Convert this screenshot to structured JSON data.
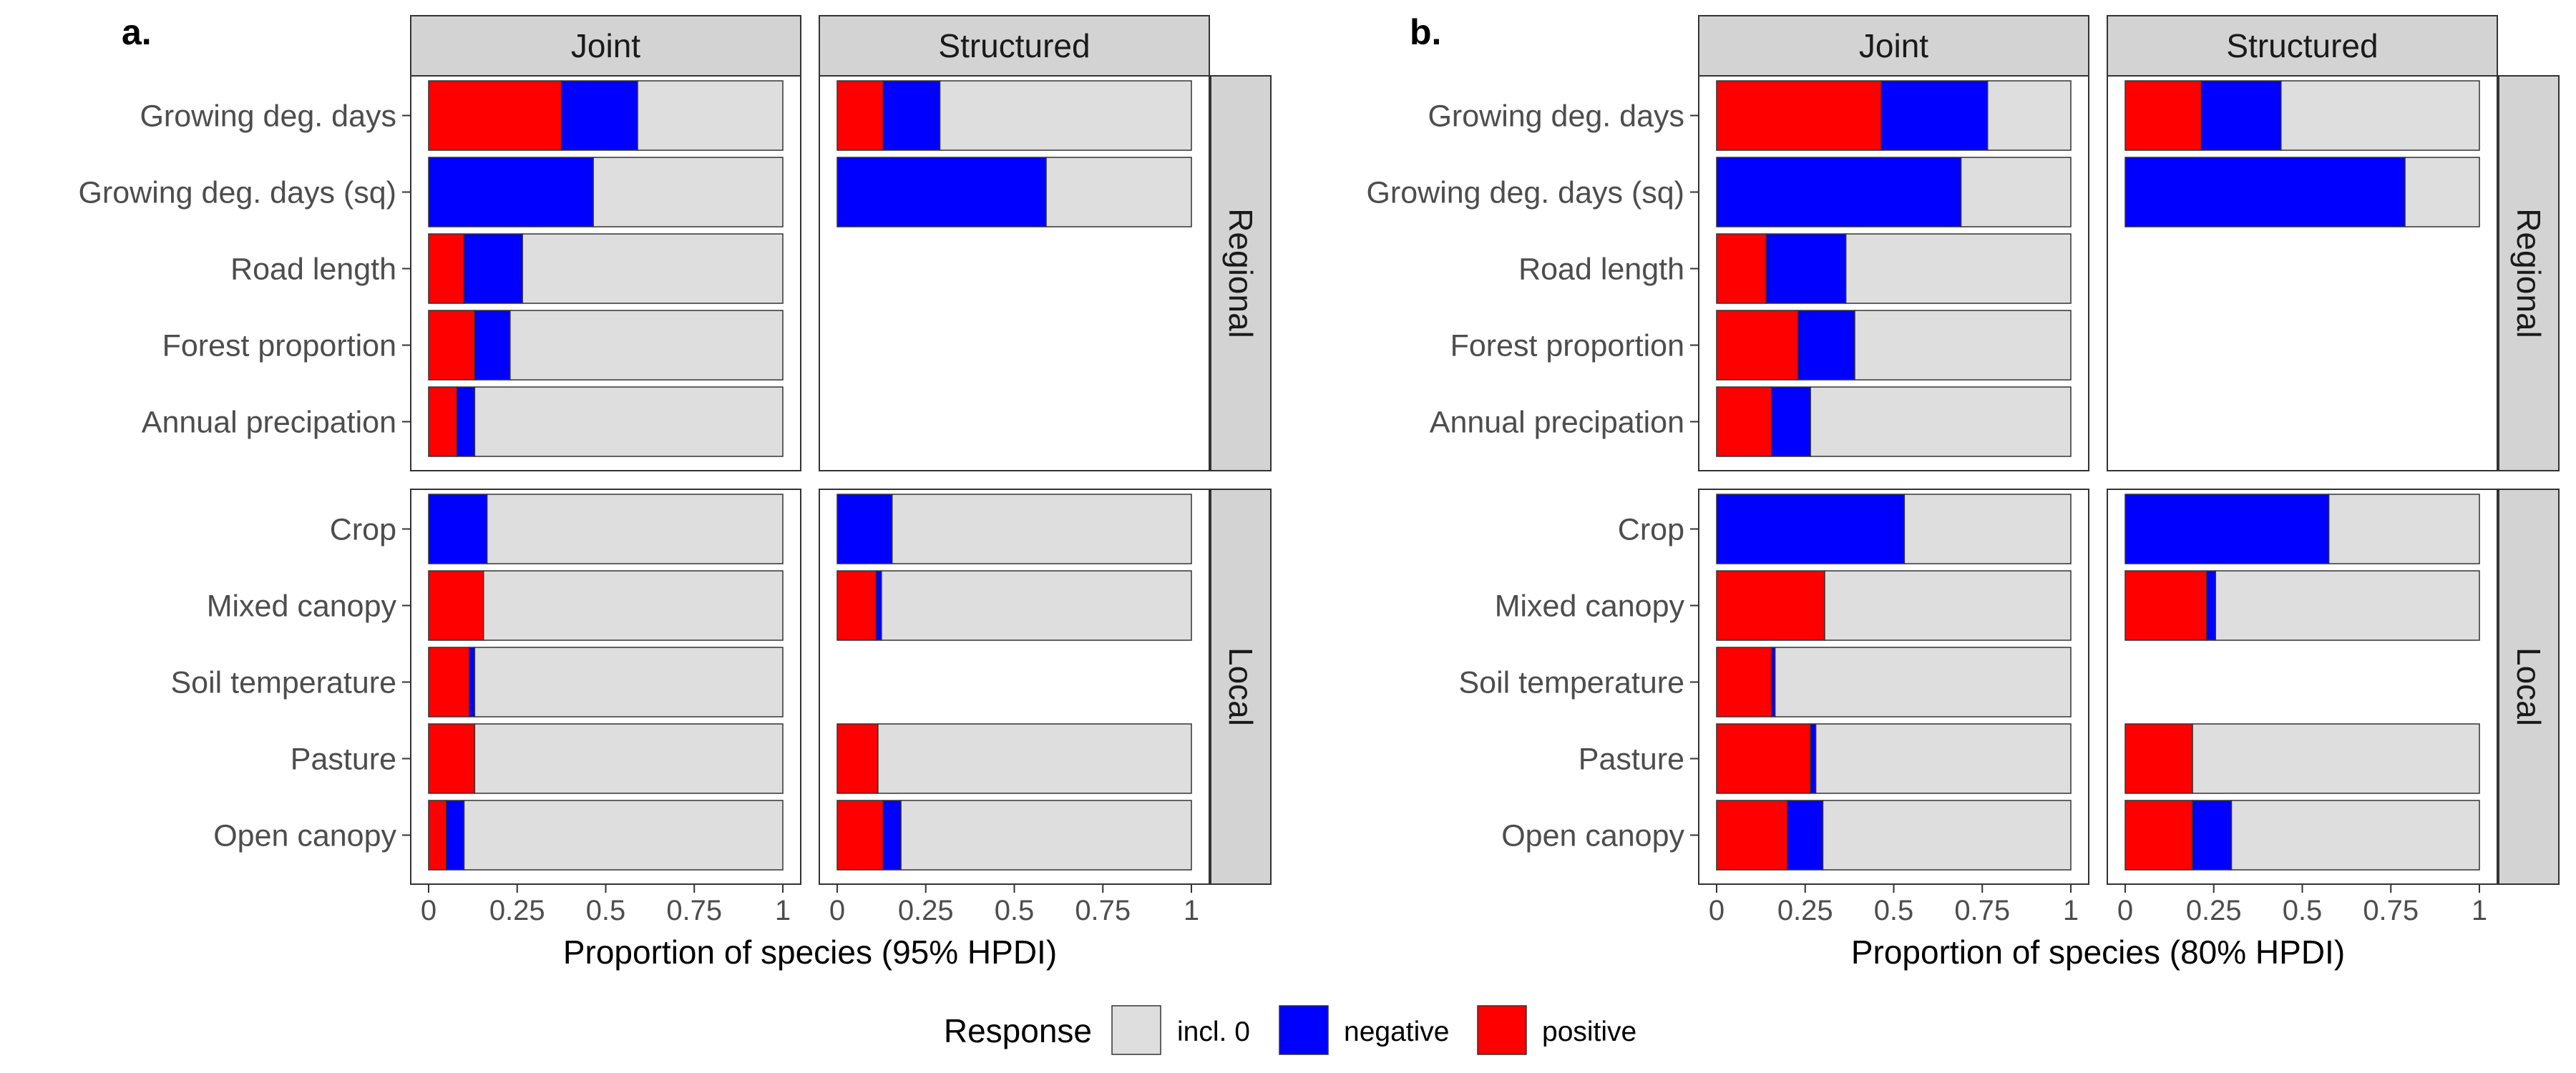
{
  "chart_data": [
    {
      "type": "bar",
      "panel_label": "a.",
      "xlabel": "Proportion of species (95% HPDI)",
      "xlim": [
        0,
        1
      ],
      "xticks": [
        "0",
        "0.25",
        "0.5",
        "0.75",
        "1"
      ],
      "columns": [
        "Joint",
        "Structured"
      ],
      "rows": [
        "Regional",
        "Local"
      ],
      "categories": {
        "Regional": [
          "Growing deg. days",
          "Growing deg. days (sq)",
          "Road length",
          "Forest proportion",
          "Annual precipation"
        ],
        "Local": [
          "Crop",
          "Mixed canopy",
          "Soil temperature",
          "Pasture",
          "Open canopy"
        ]
      },
      "series_order": [
        "positive",
        "negative",
        "incl. 0"
      ],
      "values": {
        "Joint": {
          "Regional": [
            {
              "positive": 0.375,
              "negative": 0.215,
              "incl. 0": 0.41
            },
            {
              "positive": 0.0,
              "negative": 0.465,
              "incl. 0": 0.535
            },
            {
              "positive": 0.1,
              "negative": 0.165,
              "incl. 0": 0.735
            },
            {
              "positive": 0.13,
              "negative": 0.1,
              "incl. 0": 0.77
            },
            {
              "positive": 0.08,
              "negative": 0.05,
              "incl. 0": 0.87
            }
          ],
          "Local": [
            {
              "positive": 0.0,
              "negative": 0.165,
              "incl. 0": 0.835
            },
            {
              "positive": 0.155,
              "negative": 0.0,
              "incl. 0": 0.845
            },
            {
              "positive": 0.115,
              "negative": 0.015,
              "incl. 0": 0.87
            },
            {
              "positive": 0.13,
              "negative": 0.0,
              "incl. 0": 0.87
            },
            {
              "positive": 0.05,
              "negative": 0.05,
              "incl. 0": 0.9
            }
          ]
        },
        "Structured": {
          "Regional": [
            {
              "positive": 0.13,
              "negative": 0.16,
              "incl. 0": 0.71
            },
            {
              "positive": 0.0,
              "negative": 0.59,
              "incl. 0": 0.41
            },
            null,
            null,
            null
          ],
          "Local": [
            {
              "positive": 0.0,
              "negative": 0.155,
              "incl. 0": 0.845
            },
            {
              "positive": 0.11,
              "negative": 0.015,
              "incl. 0": 0.875
            },
            null,
            {
              "positive": 0.115,
              "negative": 0.0,
              "incl. 0": 0.885
            },
            {
              "positive": 0.13,
              "negative": 0.05,
              "incl. 0": 0.82
            }
          ]
        }
      }
    },
    {
      "type": "bar",
      "panel_label": "b.",
      "xlabel": "Proportion of species (80% HPDI)",
      "xlim": [
        0,
        1
      ],
      "xticks": [
        "0",
        "0.25",
        "0.5",
        "0.75",
        "1"
      ],
      "columns": [
        "Joint",
        "Structured"
      ],
      "rows": [
        "Regional",
        "Local"
      ],
      "categories": {
        "Regional": [
          "Growing deg. days",
          "Growing deg. days (sq)",
          "Road length",
          "Forest proportion",
          "Annual precipation"
        ],
        "Local": [
          "Crop",
          "Mixed canopy",
          "Soil temperature",
          "Pasture",
          "Open canopy"
        ]
      },
      "series_order": [
        "positive",
        "negative",
        "incl. 0"
      ],
      "values": {
        "Joint": {
          "Regional": [
            {
              "positive": 0.465,
              "negative": 0.3,
              "incl. 0": 0.235
            },
            {
              "positive": 0.0,
              "negative": 0.69,
              "incl. 0": 0.31
            },
            {
              "positive": 0.14,
              "negative": 0.225,
              "incl. 0": 0.635
            },
            {
              "positive": 0.23,
              "negative": 0.16,
              "incl. 0": 0.61
            },
            {
              "positive": 0.155,
              "negative": 0.11,
              "incl. 0": 0.735
            }
          ],
          "Local": [
            {
              "positive": 0.0,
              "negative": 0.53,
              "incl. 0": 0.47
            },
            {
              "positive": 0.305,
              "negative": 0.0,
              "incl. 0": 0.695
            },
            {
              "positive": 0.155,
              "negative": 0.01,
              "incl. 0": 0.835
            },
            {
              "positive": 0.265,
              "negative": 0.015,
              "incl. 0": 0.72
            },
            {
              "positive": 0.2,
              "negative": 0.1,
              "incl. 0": 0.7
            }
          ]
        },
        "Structured": {
          "Regional": [
            {
              "positive": 0.215,
              "negative": 0.225,
              "incl. 0": 0.56
            },
            {
              "positive": 0.0,
              "negative": 0.79,
              "incl. 0": 0.21
            },
            null,
            null,
            null
          ],
          "Local": [
            {
              "positive": 0.0,
              "negative": 0.575,
              "incl. 0": 0.425
            },
            {
              "positive": 0.23,
              "negative": 0.025,
              "incl. 0": 0.745
            },
            null,
            {
              "positive": 0.19,
              "negative": 0.0,
              "incl. 0": 0.81
            },
            {
              "positive": 0.19,
              "negative": 0.11,
              "incl. 0": 0.7
            }
          ]
        }
      }
    }
  ],
  "legend": {
    "title": "Response",
    "items": [
      {
        "label": "incl. 0",
        "color": "#dedede"
      },
      {
        "label": "negative",
        "color": "#0000ff"
      },
      {
        "label": "positive",
        "color": "#ff0000"
      }
    ]
  },
  "colors": {
    "positive": "#ff0000",
    "negative": "#0000ff",
    "incl. 0": "#dedede",
    "strip": "#d3d3d3"
  }
}
